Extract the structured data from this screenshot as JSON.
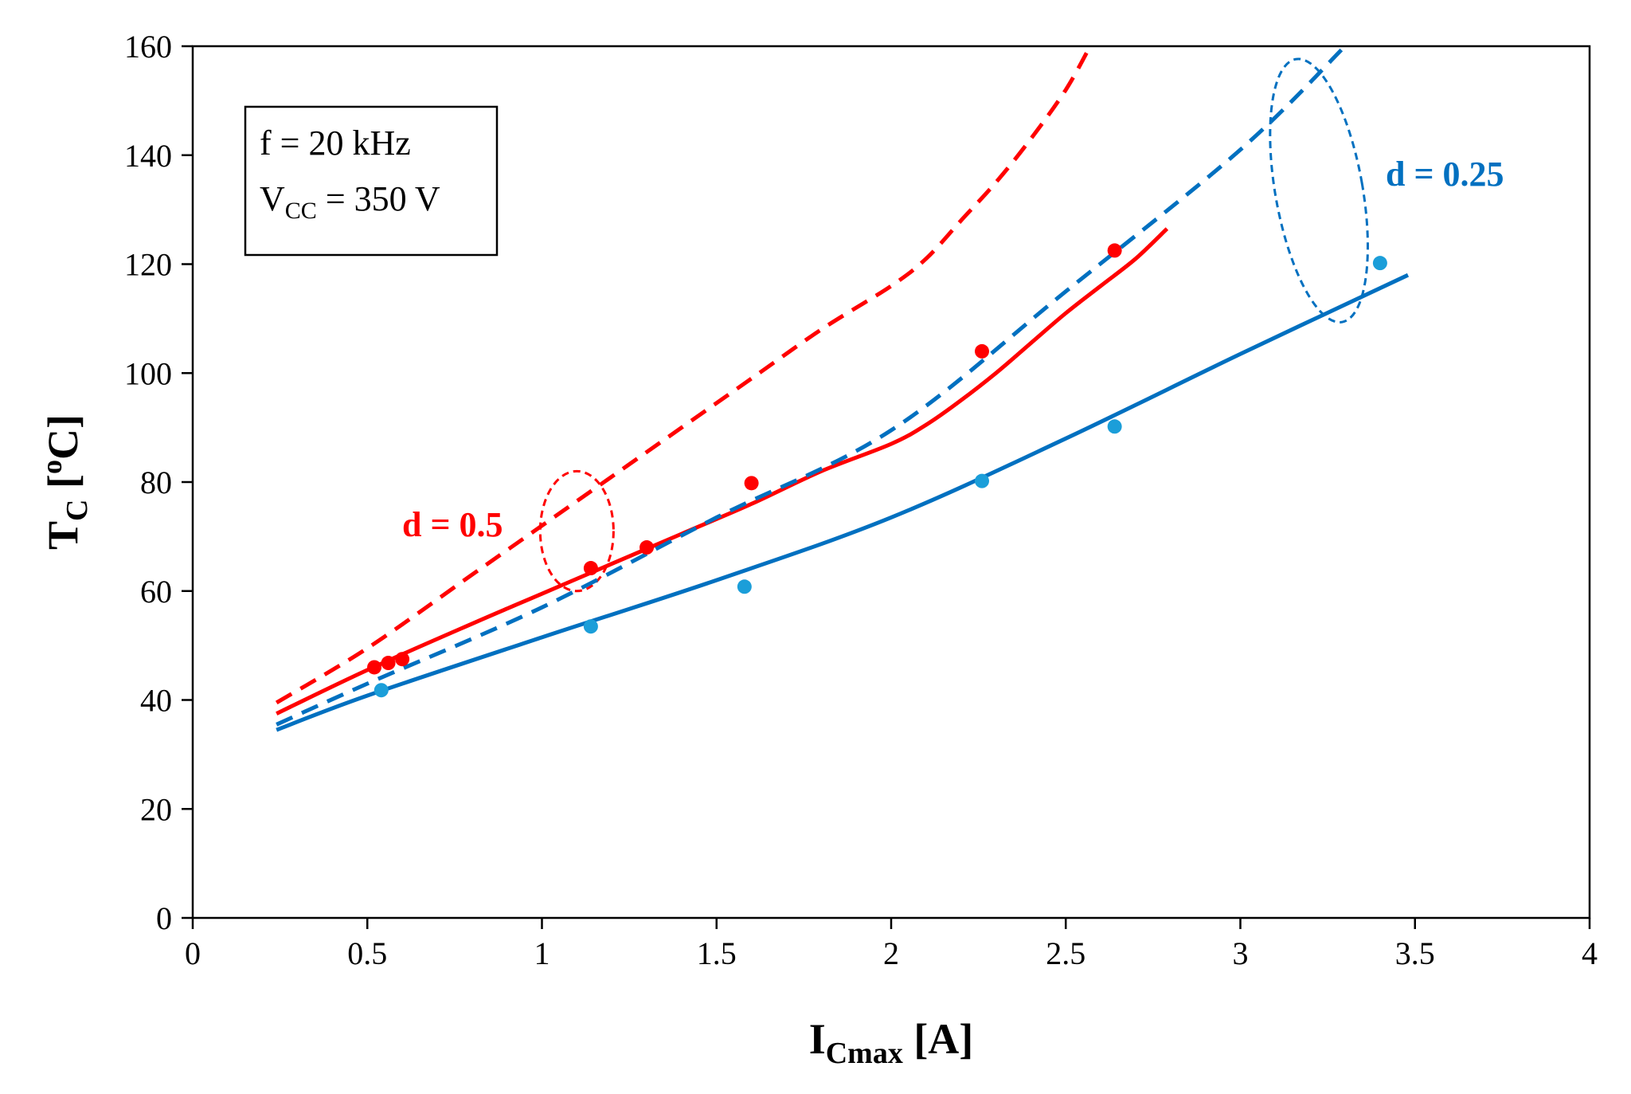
{
  "chart_data": {
    "type": "line",
    "title": "",
    "xlabel": {
      "main": "I",
      "sub": "Cmax",
      "unit": " [A]"
    },
    "ylabel": {
      "main": "T",
      "sub": "C",
      "unit_open": " [",
      "sup": "o",
      "unit_close": "C]"
    },
    "xlim": [
      0,
      4
    ],
    "ylim": [
      0,
      160
    ],
    "xticks": [
      0,
      0.5,
      1,
      1.5,
      2,
      2.5,
      3,
      3.5,
      4
    ],
    "xtick_labels": [
      "0",
      "0.5",
      "1",
      "1.5",
      "2",
      "2.5",
      "3",
      "3.5",
      "4"
    ],
    "yticks": [
      0,
      20,
      40,
      60,
      80,
      100,
      120,
      140,
      160
    ],
    "ytick_labels": [
      "0",
      "20",
      "40",
      "60",
      "80",
      "100",
      "120",
      "140",
      "160"
    ],
    "grid": false,
    "legend": null,
    "series": [
      {
        "name": "d = 0.5 model (solid)",
        "kind": "line",
        "dash": false,
        "color": "#ff0000",
        "x": [
          0.24,
          0.5,
          0.8,
          1.0,
          1.2,
          1.4,
          1.6,
          1.8,
          2.0,
          2.1,
          2.2,
          2.3,
          2.4,
          2.5,
          2.6,
          2.7,
          2.79
        ],
        "y": [
          37.5,
          45.5,
          54,
          59.5,
          65,
          70.5,
          76,
          82,
          87,
          90.5,
          95,
          100,
          105.5,
          111,
          116,
          121,
          126.5
        ]
      },
      {
        "name": "d = 0.5 model (dashed)",
        "kind": "line",
        "dash": true,
        "color": "#ff0000",
        "x": [
          0.24,
          0.5,
          0.8,
          1.0,
          1.2,
          1.4,
          1.6,
          1.8,
          2.0,
          2.1,
          2.2,
          2.3,
          2.4,
          2.5,
          2.57
        ],
        "y": [
          39.5,
          49.5,
          63,
          72,
          81,
          90,
          99,
          108,
          116,
          121,
          128,
          135,
          143,
          152,
          160
        ]
      },
      {
        "name": "d = 0.25 model (solid)",
        "kind": "line",
        "dash": false,
        "color": "#0070c0",
        "x": [
          0.24,
          0.5,
          1.0,
          1.5,
          2.0,
          2.5,
          3.0,
          3.48
        ],
        "y": [
          34.5,
          40.8,
          51.5,
          62,
          73.5,
          88,
          103.5,
          118
        ]
      },
      {
        "name": "d = 0.25 model (dashed)",
        "kind": "line",
        "dash": true,
        "color": "#0070c0",
        "x": [
          0.24,
          0.5,
          1.0,
          1.5,
          2.0,
          2.5,
          3.0,
          3.3
        ],
        "y": [
          35.5,
          43,
          57,
          73.5,
          89.5,
          115,
          141,
          160
        ]
      },
      {
        "name": "d = 0.5 measured",
        "kind": "scatter",
        "color": "#ff0000",
        "x": [
          0.52,
          0.56,
          0.6,
          1.14,
          1.3,
          1.6,
          2.26,
          2.64
        ],
        "y": [
          46,
          46.8,
          47.5,
          64.2,
          68,
          79.8,
          104,
          122.5
        ]
      },
      {
        "name": "d = 0.25 measured",
        "kind": "scatter",
        "color": "#1b9ed9",
        "x": [
          0.54,
          1.14,
          1.58,
          2.26,
          2.64,
          3.4
        ],
        "y": [
          41.8,
          53.5,
          60.8,
          80.2,
          90.2,
          120.2
        ]
      }
    ],
    "annotations": {
      "box_line1": "f = 20 kHz",
      "box_line2_main": "V",
      "box_line2_sub": "CC",
      "box_line2_rest": " = 350 V",
      "label_d05": "d = 0.5",
      "label_d025": "d = 0.25"
    },
    "ellipses": [
      {
        "name": "d = 0.5 group",
        "color": "#ff0000",
        "cx": 1.1,
        "cy": 71,
        "rx": 0.105,
        "ry": 11
      },
      {
        "name": "d = 0.25 group",
        "color": "#0070c0",
        "cx": 3.225,
        "cy": 133.5,
        "rx": 0.125,
        "ry": 24.5,
        "rotate_deg": -10
      }
    ]
  }
}
